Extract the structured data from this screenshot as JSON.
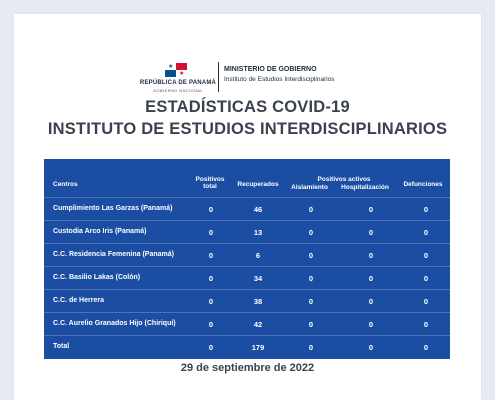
{
  "header": {
    "republic": "REPÚBLICA DE PANAMÁ",
    "government": "GOBIERNO NACIONAL",
    "ministry": "MINISTERIO DE GOBIERNO",
    "institute": "Instituto de Estudios Interdisciplinarios",
    "flag_icon": "panama-flag-icon"
  },
  "title": {
    "line1": "ESTADÍSTICAS COVID-19",
    "line2": "INSTITUTO DE ESTUDIOS INTERDISCIPLINARIOS"
  },
  "table": {
    "headers": {
      "centros": "Centros",
      "positivos_total": "Positivos total",
      "recuperados": "Recuperados",
      "positivos_activos": "Positivos activos",
      "aislamiento": "Aislamiento",
      "hospitalizacion": "Hospitalización",
      "defunciones": "Defunciones"
    },
    "rows": [
      {
        "name": "Cumplimiento Las Garzas (Panamá)",
        "positivos": "0",
        "recuperados": "46",
        "aislamiento": "0",
        "hospitalizacion": "0",
        "defunciones": "0"
      },
      {
        "name": "Custodia Arco Iris (Panamá)",
        "positivos": "0",
        "recuperados": "13",
        "aislamiento": "0",
        "hospitalizacion": "0",
        "defunciones": "0"
      },
      {
        "name": "C.C. Residencia Femenina (Panamá)",
        "positivos": "0",
        "recuperados": "6",
        "aislamiento": "0",
        "hospitalizacion": "0",
        "defunciones": "0"
      },
      {
        "name": "C.C. Basilio Lakas (Colón)",
        "positivos": "0",
        "recuperados": "34",
        "aislamiento": "0",
        "hospitalizacion": "0",
        "defunciones": "0"
      },
      {
        "name": "C.C. de Herrera",
        "positivos": "0",
        "recuperados": "38",
        "aislamiento": "0",
        "hospitalizacion": "0",
        "defunciones": "0"
      },
      {
        "name": "C.C. Aurelio Granados Hijo (Chiriquí)",
        "positivos": "0",
        "recuperados": "42",
        "aislamiento": "0",
        "hospitalizacion": "0",
        "defunciones": "0"
      },
      {
        "name": "Total",
        "positivos": "0",
        "recuperados": "179",
        "aislamiento": "0",
        "hospitalizacion": "0",
        "defunciones": "0"
      }
    ]
  },
  "date": "29 de septiembre de 2022",
  "colors": {
    "table_bg": "#1b4ea3",
    "title_text": "#3a4250",
    "page_bg": "#e6eaf3"
  }
}
